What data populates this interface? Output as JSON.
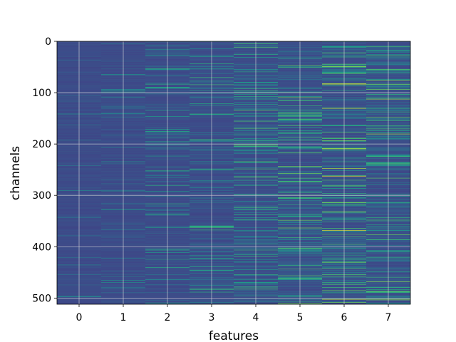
{
  "chart_data": {
    "type": "heatmap",
    "title": "",
    "xlabel": "features",
    "ylabel": "channels",
    "x_ticks": [
      0,
      1,
      2,
      3,
      4,
      5,
      6,
      7
    ],
    "y_ticks": [
      0,
      100,
      200,
      300,
      400,
      500
    ],
    "xlim": [
      -0.5,
      7.5
    ],
    "ylim": [
      512,
      0
    ],
    "n_features": 8,
    "n_channels": 512,
    "grid": true,
    "colormap": "viridis",
    "colors": {
      "background_min": "#440154",
      "low": "#3b528b",
      "mid": "#21918c",
      "high": "#5ec962",
      "max": "#fde725",
      "grid": "#d9d9d9"
    },
    "feature_activity_level": [
      0.05,
      0.12,
      0.22,
      0.28,
      0.32,
      0.36,
      0.42,
      0.38
    ],
    "highlights": [
      {
        "feature": 6,
        "channel": 262,
        "level": 1.0
      },
      {
        "feature": 5,
        "channel": 402,
        "level": 0.85
      }
    ]
  }
}
